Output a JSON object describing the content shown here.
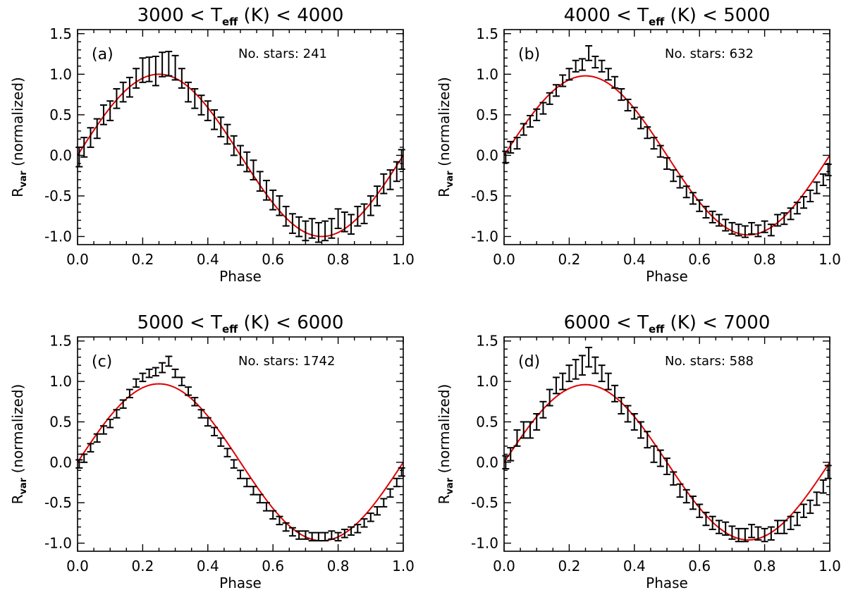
{
  "colors": {
    "data": "#000000",
    "fit": "#e00000",
    "axes": "#000000",
    "background": "#ffffff"
  },
  "chart_data": [
    {
      "type": "scatter",
      "panel_label": "(a)",
      "title": {
        "prefix": "3000 < T",
        "subscript": "eff",
        "suffix": " (K) < 4000"
      },
      "count_text": "No. stars: 241",
      "xlabel": "Phase",
      "ylabel": {
        "main": "R",
        "subscript": "var",
        "suffix": " (normalized)"
      },
      "xlim": [
        0,
        1
      ],
      "ylim": [
        -1.1,
        1.55
      ],
      "xticks": [
        0,
        0.2,
        0.4,
        0.6,
        0.8,
        1.0
      ],
      "xtick_labels": [
        "0.0",
        "0.2",
        "0.4",
        "0.6",
        "0.8",
        "1.0"
      ],
      "yticks": [
        -1.0,
        -0.5,
        0.0,
        0.5,
        1.0,
        1.5
      ],
      "ytick_labels": [
        "-1.0",
        "-0.5",
        "0.0",
        "0.5",
        "1.0",
        "1.5"
      ],
      "grid": false,
      "series": [
        {
          "kind": "errorbar",
          "x": [
            0.005,
            0.02,
            0.04,
            0.06,
            0.08,
            0.1,
            0.12,
            0.14,
            0.16,
            0.18,
            0.2,
            0.22,
            0.24,
            0.26,
            0.28,
            0.3,
            0.32,
            0.34,
            0.36,
            0.38,
            0.4,
            0.42,
            0.44,
            0.46,
            0.48,
            0.5,
            0.52,
            0.54,
            0.56,
            0.58,
            0.6,
            0.62,
            0.64,
            0.66,
            0.68,
            0.7,
            0.72,
            0.74,
            0.76,
            0.78,
            0.8,
            0.82,
            0.84,
            0.86,
            0.88,
            0.9,
            0.92,
            0.94,
            0.96,
            0.98,
            0.995
          ],
          "y": [
            -0.02,
            0.1,
            0.22,
            0.33,
            0.5,
            0.55,
            0.7,
            0.78,
            0.84,
            0.95,
            1.05,
            1.06,
            1.04,
            1.12,
            1.13,
            1.08,
            0.95,
            0.78,
            0.7,
            0.62,
            0.55,
            0.44,
            0.35,
            0.26,
            0.12,
            0.0,
            -0.08,
            -0.18,
            -0.32,
            -0.43,
            -0.55,
            -0.62,
            -0.75,
            -0.84,
            -0.88,
            -0.93,
            -0.9,
            -0.95,
            -0.93,
            -0.9,
            -0.78,
            -0.82,
            -0.85,
            -0.75,
            -0.72,
            -0.62,
            -0.5,
            -0.35,
            -0.3,
            -0.2,
            -0.05
          ],
          "err": [
            0.12,
            0.12,
            0.12,
            0.12,
            0.12,
            0.12,
            0.12,
            0.12,
            0.12,
            0.12,
            0.15,
            0.15,
            0.18,
            0.15,
            0.15,
            0.15,
            0.12,
            0.12,
            0.12,
            0.12,
            0.12,
            0.12,
            0.12,
            0.12,
            0.12,
            0.12,
            0.12,
            0.12,
            0.12,
            0.12,
            0.12,
            0.12,
            0.12,
            0.12,
            0.12,
            0.12,
            0.12,
            0.12,
            0.12,
            0.12,
            0.12,
            0.12,
            0.12,
            0.12,
            0.12,
            0.12,
            0.12,
            0.12,
            0.12,
            0.12,
            0.12
          ]
        },
        {
          "kind": "sine_fit",
          "amplitude": 1.0,
          "note_values": [
            [
              0,
              0
            ],
            [
              0.25,
              1.0
            ],
            [
              0.5,
              0
            ],
            [
              0.75,
              -1.0
            ],
            [
              1.0,
              0
            ]
          ]
        }
      ]
    },
    {
      "type": "scatter",
      "panel_label": "(b)",
      "title": {
        "prefix": "4000 < T",
        "subscript": "eff",
        "suffix": " (K) < 5000"
      },
      "count_text": "No. stars: 632",
      "xlabel": "Phase",
      "ylabel": {
        "main": "R",
        "subscript": "var",
        "suffix": " (normalized)"
      },
      "xlim": [
        0,
        1
      ],
      "ylim": [
        -1.1,
        1.55
      ],
      "xticks": [
        0,
        0.2,
        0.4,
        0.6,
        0.8,
        1.0
      ],
      "xtick_labels": [
        "0.0",
        "0.2",
        "0.4",
        "0.6",
        "0.8",
        "1.0"
      ],
      "yticks": [
        -1.0,
        -0.5,
        0.0,
        0.5,
        1.0,
        1.5
      ],
      "ytick_labels": [
        "-1.0",
        "-0.5",
        "0.0",
        "0.5",
        "1.0",
        "1.5"
      ],
      "grid": false,
      "series": [
        {
          "kind": "errorbar",
          "x": [
            0.005,
            0.02,
            0.04,
            0.06,
            0.08,
            0.1,
            0.12,
            0.14,
            0.16,
            0.18,
            0.2,
            0.22,
            0.24,
            0.26,
            0.28,
            0.3,
            0.32,
            0.34,
            0.36,
            0.38,
            0.4,
            0.42,
            0.44,
            0.46,
            0.48,
            0.5,
            0.52,
            0.54,
            0.56,
            0.58,
            0.6,
            0.62,
            0.64,
            0.66,
            0.68,
            0.7,
            0.72,
            0.74,
            0.76,
            0.78,
            0.8,
            0.82,
            0.84,
            0.86,
            0.88,
            0.9,
            0.92,
            0.94,
            0.96,
            0.98,
            0.995
          ],
          "y": [
            -0.02,
            0.1,
            0.15,
            0.32,
            0.42,
            0.5,
            0.58,
            0.7,
            0.8,
            0.92,
            1.0,
            1.1,
            1.12,
            1.26,
            1.15,
            1.1,
            1.0,
            0.9,
            0.75,
            0.62,
            0.52,
            0.4,
            0.28,
            0.15,
            0.05,
            -0.1,
            -0.25,
            -0.33,
            -0.45,
            -0.53,
            -0.62,
            -0.7,
            -0.76,
            -0.8,
            -0.86,
            -0.9,
            -0.92,
            -0.94,
            -0.9,
            -0.93,
            -0.88,
            -0.92,
            -0.8,
            -0.78,
            -0.72,
            -0.65,
            -0.58,
            -0.5,
            -0.4,
            -0.3,
            -0.18
          ],
          "err": [
            0.07,
            0.07,
            0.07,
            0.07,
            0.07,
            0.07,
            0.07,
            0.07,
            0.07,
            0.07,
            0.07,
            0.07,
            0.07,
            0.09,
            0.07,
            0.07,
            0.07,
            0.07,
            0.07,
            0.07,
            0.07,
            0.07,
            0.07,
            0.07,
            0.07,
            0.07,
            0.07,
            0.07,
            0.07,
            0.07,
            0.07,
            0.07,
            0.07,
            0.07,
            0.07,
            0.07,
            0.07,
            0.07,
            0.07,
            0.07,
            0.07,
            0.07,
            0.07,
            0.07,
            0.07,
            0.07,
            0.07,
            0.07,
            0.07,
            0.07,
            0.07
          ]
        },
        {
          "kind": "sine_fit",
          "amplitude": 0.98
        }
      ]
    },
    {
      "type": "scatter",
      "panel_label": "(c)",
      "title": {
        "prefix": "5000 < T",
        "subscript": "eff",
        "suffix": " (K) < 6000"
      },
      "count_text": "No. stars: 1742",
      "xlabel": "Phase",
      "ylabel": {
        "main": "R",
        "subscript": "var",
        "suffix": " (normalized)"
      },
      "xlim": [
        0,
        1
      ],
      "ylim": [
        -1.1,
        1.55
      ],
      "xticks": [
        0,
        0.2,
        0.4,
        0.6,
        0.8,
        1.0
      ],
      "xtick_labels": [
        "0.0",
        "0.2",
        "0.4",
        "0.6",
        "0.8",
        "1.0"
      ],
      "yticks": [
        -1.0,
        -0.5,
        0.0,
        0.5,
        1.0,
        1.5
      ],
      "ytick_labels": [
        "-1.0",
        "-0.5",
        "0.0",
        "0.5",
        "1.0",
        "1.5"
      ],
      "grid": false,
      "series": [
        {
          "kind": "errorbar",
          "x": [
            0.005,
            0.02,
            0.04,
            0.06,
            0.08,
            0.1,
            0.12,
            0.14,
            0.16,
            0.18,
            0.2,
            0.22,
            0.24,
            0.26,
            0.28,
            0.3,
            0.32,
            0.34,
            0.36,
            0.38,
            0.4,
            0.42,
            0.44,
            0.46,
            0.48,
            0.5,
            0.52,
            0.54,
            0.56,
            0.58,
            0.6,
            0.62,
            0.64,
            0.66,
            0.68,
            0.7,
            0.72,
            0.74,
            0.76,
            0.78,
            0.8,
            0.82,
            0.84,
            0.86,
            0.88,
            0.9,
            0.92,
            0.94,
            0.96,
            0.98,
            0.995
          ],
          "y": [
            -0.02,
            0.05,
            0.18,
            0.3,
            0.4,
            0.48,
            0.6,
            0.72,
            0.85,
            0.98,
            1.05,
            1.1,
            1.12,
            1.17,
            1.25,
            1.1,
            1.0,
            0.88,
            0.75,
            0.6,
            0.5,
            0.38,
            0.25,
            0.12,
            -0.02,
            -0.15,
            -0.25,
            -0.35,
            -0.45,
            -0.55,
            -0.65,
            -0.72,
            -0.8,
            -0.86,
            -0.9,
            -0.9,
            -0.92,
            -0.92,
            -0.92,
            -0.9,
            -0.92,
            -0.88,
            -0.85,
            -0.82,
            -0.75,
            -0.68,
            -0.6,
            -0.5,
            -0.38,
            -0.25,
            -0.12
          ],
          "err": [
            0.05,
            0.05,
            0.05,
            0.05,
            0.05,
            0.05,
            0.05,
            0.05,
            0.05,
            0.05,
            0.05,
            0.05,
            0.05,
            0.06,
            0.06,
            0.05,
            0.05,
            0.05,
            0.05,
            0.05,
            0.05,
            0.05,
            0.05,
            0.05,
            0.05,
            0.05,
            0.05,
            0.05,
            0.05,
            0.05,
            0.05,
            0.05,
            0.05,
            0.05,
            0.05,
            0.05,
            0.05,
            0.05,
            0.05,
            0.05,
            0.05,
            0.05,
            0.05,
            0.05,
            0.05,
            0.05,
            0.05,
            0.05,
            0.05,
            0.05,
            0.05
          ]
        },
        {
          "kind": "sine_fit",
          "amplitude": 0.97
        }
      ]
    },
    {
      "type": "scatter",
      "panel_label": "(d)",
      "title": {
        "prefix": "6000 < T",
        "subscript": "eff",
        "suffix": " (K) < 7000"
      },
      "count_text": "No. stars: 588",
      "xlabel": "Phase",
      "ylabel": {
        "main": "R",
        "subscript": "var",
        "suffix": " (normalized)"
      },
      "xlim": [
        0,
        1
      ],
      "ylim": [
        -1.1,
        1.55
      ],
      "xticks": [
        0,
        0.2,
        0.4,
        0.6,
        0.8,
        1.0
      ],
      "xtick_labels": [
        "0.0",
        "0.2",
        "0.4",
        "0.6",
        "0.8",
        "1.0"
      ],
      "yticks": [
        -1.0,
        -0.5,
        0.0,
        0.5,
        1.0,
        1.5
      ],
      "ytick_labels": [
        "-1.0",
        "-0.5",
        "0.0",
        "0.5",
        "1.0",
        "1.5"
      ],
      "grid": false,
      "series": [
        {
          "kind": "errorbar",
          "x": [
            0.005,
            0.02,
            0.04,
            0.06,
            0.08,
            0.1,
            0.12,
            0.14,
            0.16,
            0.18,
            0.2,
            0.22,
            0.24,
            0.26,
            0.28,
            0.3,
            0.32,
            0.34,
            0.36,
            0.38,
            0.4,
            0.42,
            0.44,
            0.46,
            0.48,
            0.5,
            0.52,
            0.54,
            0.56,
            0.58,
            0.6,
            0.62,
            0.64,
            0.66,
            0.68,
            0.7,
            0.72,
            0.74,
            0.76,
            0.78,
            0.8,
            0.82,
            0.84,
            0.86,
            0.88,
            0.9,
            0.92,
            0.94,
            0.96,
            0.98,
            0.995
          ],
          "y": [
            0.0,
            0.1,
            0.3,
            0.4,
            0.4,
            0.5,
            0.65,
            0.8,
            0.95,
            1.0,
            1.1,
            1.15,
            1.2,
            1.3,
            1.2,
            1.1,
            1.0,
            0.85,
            0.7,
            0.6,
            0.5,
            0.4,
            0.28,
            0.1,
            0.05,
            -0.05,
            -0.2,
            -0.35,
            -0.42,
            -0.5,
            -0.6,
            -0.7,
            -0.75,
            -0.8,
            -0.82,
            -0.87,
            -0.9,
            -0.9,
            -0.85,
            -0.88,
            -0.9,
            -0.88,
            -0.8,
            -0.8,
            -0.75,
            -0.7,
            -0.6,
            -0.55,
            -0.45,
            -0.3,
            -0.12
          ],
          "err": [
            0.08,
            0.08,
            0.1,
            0.1,
            0.1,
            0.1,
            0.1,
            0.1,
            0.1,
            0.1,
            0.1,
            0.12,
            0.12,
            0.12,
            0.1,
            0.1,
            0.1,
            0.1,
            0.1,
            0.1,
            0.1,
            0.1,
            0.1,
            0.1,
            0.1,
            0.1,
            0.08,
            0.08,
            0.08,
            0.08,
            0.08,
            0.08,
            0.08,
            0.08,
            0.08,
            0.08,
            0.08,
            0.08,
            0.08,
            0.08,
            0.08,
            0.08,
            0.08,
            0.08,
            0.08,
            0.08,
            0.08,
            0.08,
            0.08,
            0.08,
            0.08
          ]
        },
        {
          "kind": "sine_fit",
          "amplitude": 0.96
        }
      ]
    }
  ]
}
